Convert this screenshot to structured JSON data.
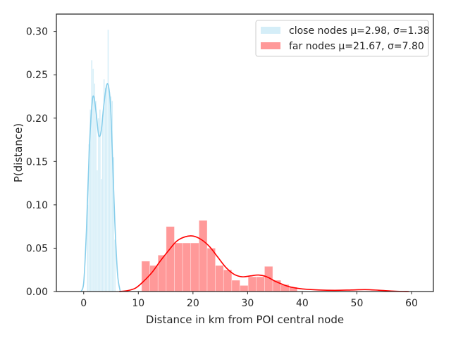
{
  "chart_data": {
    "type": "histogram",
    "xlabel": "Distance in km from POI central node",
    "ylabel": "P(distance)",
    "xlim": [
      -5,
      64
    ],
    "ylim": [
      0,
      0.32
    ],
    "xticks": [
      0,
      10,
      20,
      30,
      40,
      50,
      60
    ],
    "yticks": [
      0.0,
      0.05,
      0.1,
      0.15,
      0.2,
      0.25,
      0.3
    ],
    "grid": false,
    "legend_position": "top-right",
    "series": [
      {
        "name": "close nodes μ=2.98, σ=1.38",
        "color": "#87ceeb",
        "bar_alpha": 0.35,
        "bins": [
          {
            "x0": 0.6,
            "x1": 0.85,
            "y": 0.1
          },
          {
            "x0": 0.85,
            "x1": 1.1,
            "y": 0.17
          },
          {
            "x0": 1.1,
            "x1": 1.35,
            "y": 0.21
          },
          {
            "x0": 1.35,
            "x1": 1.6,
            "y": 0.267
          },
          {
            "x0": 1.6,
            "x1": 1.85,
            "y": 0.257
          },
          {
            "x0": 1.85,
            "x1": 2.1,
            "y": 0.24
          },
          {
            "x0": 2.1,
            "x1": 2.35,
            "y": 0.22
          },
          {
            "x0": 2.35,
            "x1": 2.6,
            "y": 0.14
          },
          {
            "x0": 2.6,
            "x1": 2.85,
            "y": 0.2
          },
          {
            "x0": 2.85,
            "x1": 3.1,
            "y": 0.21
          },
          {
            "x0": 3.1,
            "x1": 3.35,
            "y": 0.13
          },
          {
            "x0": 3.35,
            "x1": 3.6,
            "y": 0.2
          },
          {
            "x0": 3.6,
            "x1": 3.85,
            "y": 0.245
          },
          {
            "x0": 3.85,
            "x1": 4.1,
            "y": 0.235
          },
          {
            "x0": 4.1,
            "x1": 4.35,
            "y": 0.24
          },
          {
            "x0": 4.35,
            "x1": 4.6,
            "y": 0.302
          },
          {
            "x0": 4.6,
            "x1": 4.85,
            "y": 0.23
          },
          {
            "x0": 4.85,
            "x1": 5.1,
            "y": 0.225
          },
          {
            "x0": 5.1,
            "x1": 5.35,
            "y": 0.22
          },
          {
            "x0": 5.35,
            "x1": 5.6,
            "y": 0.155
          },
          {
            "x0": 5.6,
            "x1": 5.85,
            "y": 0.06
          }
        ],
        "kde": [
          [
            -0.5,
            0.0
          ],
          [
            0.0,
            0.01
          ],
          [
            0.5,
            0.07
          ],
          [
            1.0,
            0.16
          ],
          [
            1.5,
            0.215
          ],
          [
            1.85,
            0.225
          ],
          [
            2.3,
            0.205
          ],
          [
            2.75,
            0.18
          ],
          [
            3.2,
            0.185
          ],
          [
            3.6,
            0.21
          ],
          [
            4.1,
            0.235
          ],
          [
            4.5,
            0.238
          ],
          [
            4.9,
            0.215
          ],
          [
            5.3,
            0.15
          ],
          [
            5.7,
            0.08
          ],
          [
            6.2,
            0.02
          ],
          [
            6.7,
            0.0
          ]
        ]
      },
      {
        "name": "far nodes μ=21.67, σ=7.80",
        "color": "#ff0000",
        "bar_alpha": 0.4,
        "bins": [
          {
            "x0": 10.6,
            "x1": 12.1,
            "y": 0.035
          },
          {
            "x0": 12.1,
            "x1": 13.6,
            "y": 0.03
          },
          {
            "x0": 13.6,
            "x1": 15.1,
            "y": 0.042
          },
          {
            "x0": 15.1,
            "x1": 16.6,
            "y": 0.075
          },
          {
            "x0": 16.6,
            "x1": 18.1,
            "y": 0.056
          },
          {
            "x0": 18.1,
            "x1": 19.6,
            "y": 0.056
          },
          {
            "x0": 19.6,
            "x1": 21.1,
            "y": 0.056
          },
          {
            "x0": 21.1,
            "x1": 22.6,
            "y": 0.082
          },
          {
            "x0": 22.6,
            "x1": 24.1,
            "y": 0.05
          },
          {
            "x0": 24.1,
            "x1": 25.6,
            "y": 0.03
          },
          {
            "x0": 25.6,
            "x1": 27.1,
            "y": 0.025
          },
          {
            "x0": 27.1,
            "x1": 28.6,
            "y": 0.013
          },
          {
            "x0": 28.6,
            "x1": 30.1,
            "y": 0.007
          },
          {
            "x0": 30.1,
            "x1": 31.6,
            "y": 0.017
          },
          {
            "x0": 31.6,
            "x1": 33.1,
            "y": 0.017
          },
          {
            "x0": 33.1,
            "x1": 34.6,
            "y": 0.029
          },
          {
            "x0": 34.6,
            "x1": 36.1,
            "y": 0.013
          },
          {
            "x0": 36.1,
            "x1": 37.6,
            "y": 0.008
          },
          {
            "x0": 37.6,
            "x1": 39.1,
            "y": 0.005
          }
        ],
        "kde": [
          [
            6.5,
            0.0
          ],
          [
            8,
            0.001
          ],
          [
            9.5,
            0.004
          ],
          [
            11,
            0.012
          ],
          [
            12.5,
            0.022
          ],
          [
            14,
            0.035
          ],
          [
            15.5,
            0.047
          ],
          [
            17,
            0.058
          ],
          [
            18.5,
            0.063
          ],
          [
            20,
            0.064
          ],
          [
            21.5,
            0.06
          ],
          [
            23,
            0.052
          ],
          [
            24.5,
            0.04
          ],
          [
            26,
            0.028
          ],
          [
            27.5,
            0.02
          ],
          [
            29,
            0.017
          ],
          [
            30.5,
            0.018
          ],
          [
            32,
            0.019
          ],
          [
            33.5,
            0.017
          ],
          [
            35,
            0.012
          ],
          [
            36.5,
            0.008
          ],
          [
            38,
            0.005
          ],
          [
            40,
            0.003
          ],
          [
            43,
            0.0018
          ],
          [
            46,
            0.0014
          ],
          [
            49,
            0.0018
          ],
          [
            51.5,
            0.0022
          ],
          [
            54,
            0.0015
          ],
          [
            57,
            0.0004
          ],
          [
            59.5,
            0.0
          ]
        ]
      }
    ]
  }
}
